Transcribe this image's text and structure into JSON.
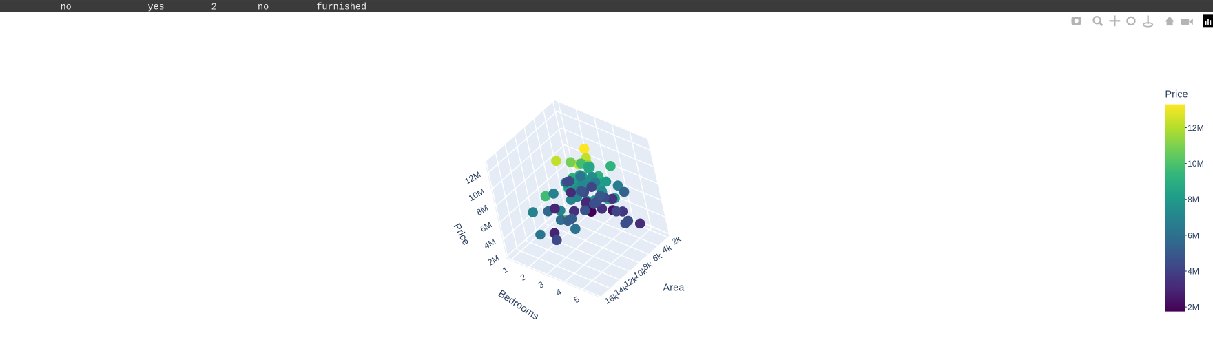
{
  "header_row": [
    "no",
    "yes",
    "2",
    "no",
    "furnished"
  ],
  "chart_data": {
    "type": "scatter3d",
    "x_title": "Area",
    "y_title": "Bedrooms",
    "z_title": "Price",
    "xlim": [
      1650,
      16200
    ],
    "ylim": [
      0.8,
      6
    ],
    "zlim": [
      1750000,
      13300000
    ],
    "xticks": [
      {
        "value": 2000,
        "label": "2k"
      },
      {
        "value": 4000,
        "label": "4k"
      },
      {
        "value": 6000,
        "label": "6k"
      },
      {
        "value": 8000,
        "label": "8k"
      },
      {
        "value": 10000,
        "label": "10k"
      },
      {
        "value": 12000,
        "label": "12k"
      },
      {
        "value": 14000,
        "label": "14k"
      },
      {
        "value": 16000,
        "label": "16k"
      }
    ],
    "yticks": [
      1,
      2,
      3,
      4,
      5
    ],
    "zticks": [
      {
        "value": 2000000,
        "label": "2M"
      },
      {
        "value": 4000000,
        "label": "4M"
      },
      {
        "value": 6000000,
        "label": "6M"
      },
      {
        "value": 8000000,
        "label": "8M"
      },
      {
        "value": 10000000,
        "label": "10M"
      },
      {
        "value": 12000000,
        "label": "12M"
      }
    ],
    "colorbar": {
      "title": "Price",
      "lim": [
        1750000,
        13300000
      ],
      "ticks": [
        {
          "value": 2000000,
          "label": "2M"
        },
        {
          "value": 4000000,
          "label": "4M"
        },
        {
          "value": 6000000,
          "label": "6M"
        },
        {
          "value": 8000000,
          "label": "8M"
        },
        {
          "value": 10000000,
          "label": "10M"
        },
        {
          "value": 12000000,
          "label": "12M"
        }
      ]
    },
    "colorscale": [
      "#440154",
      "#482878",
      "#3e4989",
      "#31688e",
      "#26828e",
      "#1f9e89",
      "#35b779",
      "#6ece58",
      "#b5de2b",
      "#fde725"
    ],
    "x": [
      7420,
      8960,
      9960,
      7500,
      7420,
      7500,
      8580,
      16200,
      8100,
      5750,
      13200,
      6000,
      6550,
      3500,
      7800,
      6000,
      6600,
      8500,
      4600,
      6420,
      4320,
      7155,
      8050,
      4560,
      8800,
      6540,
      6000,
      8875,
      7950,
      5500,
      7475,
      7000,
      4880,
      5960,
      6840,
      7000,
      7482,
      9000,
      6000,
      6550,
      6360,
      6480,
      6000,
      6000,
      6600,
      4300,
      7440,
      6325,
      6000,
      5150,
      7680,
      6000,
      8880,
      6240,
      6360,
      11175,
      8880,
      13200,
      7700,
      4000,
      3000,
      3500,
      2145,
      10500,
      12090,
      15600,
      11460,
      10269,
      2000,
      3180,
      3600,
      1650,
      10240,
      3350,
      2015,
      3000,
      3850,
      6000,
      3420,
      5400,
      4500,
      6000,
      9500,
      3240,
      2787,
      3000,
      3520,
      3000,
      4260,
      3650,
      6420,
      5060,
      12944,
      6860,
      4000
    ],
    "y": [
      4,
      4,
      3,
      4,
      4,
      3,
      4,
      5,
      4,
      3,
      3,
      4,
      4,
      4,
      3,
      4,
      4,
      3,
      3,
      3,
      3,
      3,
      3,
      3,
      3,
      4,
      3,
      3,
      5,
      4,
      3,
      3,
      4,
      3,
      5,
      3,
      3,
      4,
      3,
      3,
      3,
      3,
      4,
      4,
      3,
      3,
      3,
      3,
      4,
      3,
      4,
      3,
      3,
      4,
      2,
      3,
      2,
      2,
      3,
      3,
      4,
      2,
      4,
      2,
      4,
      3,
      3,
      3,
      2,
      4,
      2,
      3,
      2,
      2,
      3,
      2,
      3,
      2,
      5,
      5,
      3,
      5,
      3,
      1,
      1,
      1,
      2,
      3,
      4,
      3,
      1,
      3,
      3,
      3,
      2
    ],
    "z": [
      13300000,
      12250000,
      12250000,
      12215000,
      11410000,
      10850000,
      10150000,
      10150000,
      9870000,
      9800000,
      9681000,
      9310000,
      9240000,
      9240000,
      9100000,
      9100000,
      8960000,
      8890000,
      8855000,
      8750000,
      8680000,
      8645000,
      8645000,
      8575000,
      8540000,
      8463000,
      8400000,
      8400000,
      8400000,
      8295000,
      8190000,
      8120000,
      8080940,
      8043000,
      7980000,
      7962500,
      7910000,
      7875000,
      7840000,
      7700000,
      7700000,
      7560000,
      7560000,
      7525000,
      7490000,
      7455000,
      7420000,
      7420000,
      7350000,
      7350000,
      7245000,
      7210000,
      7035000,
      7000000,
      6930000,
      6930000,
      6895000,
      6860000,
      6790000,
      6650000,
      6650000,
      6230000,
      5460000,
      5600000,
      6090000,
      6300000,
      5950000,
      5250000,
      4200000,
      3640000,
      3150000,
      3500000,
      2870000,
      3010000,
      2310000,
      1750000,
      3430000,
      3325000,
      3220000,
      4550000,
      4550000,
      4543000,
      5110000,
      4550000,
      4410000,
      3150000,
      4340000,
      4340000,
      4200000,
      4900000,
      2975000,
      4620000,
      4305000,
      4760000,
      4725000
    ]
  }
}
